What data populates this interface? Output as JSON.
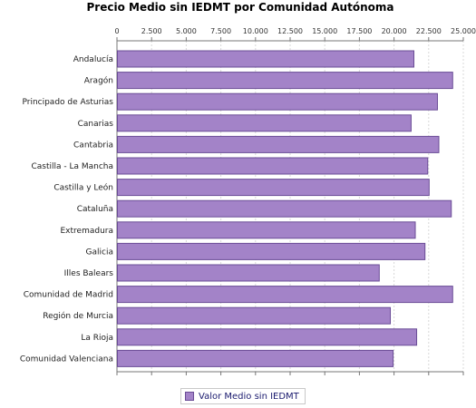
{
  "chart_data": {
    "type": "bar",
    "orientation": "horizontal",
    "title": "Precio Medio sin IEDMT por Comunidad Autónoma",
    "xlim": [
      0,
      25000
    ],
    "x_ticks": [
      "0",
      "2.500",
      "5.000",
      "7.500",
      "10.000",
      "12.500",
      "15.000",
      "17.500",
      "20.000",
      "22.500",
      "25.000"
    ],
    "x_tick_values": [
      0,
      2500,
      5000,
      7500,
      10000,
      12500,
      15000,
      17500,
      20000,
      22500,
      25000
    ],
    "grid": true,
    "legend_position": "bottom-center",
    "categories": [
      "Andalucía",
      "Aragón",
      "Principado de Asturias",
      "Canarias",
      "Cantabria",
      "Castilla - La Mancha",
      "Castilla y León",
      "Cataluña",
      "Extremadura",
      "Galicia",
      "Illes Balears",
      "Comunidad de Madrid",
      "Región de Murcia",
      "La Rioja",
      "Comunidad Valenciana"
    ],
    "series": [
      {
        "name": "Valor Medio sin IEDMT",
        "color": "#a383c8",
        "values": [
          21400,
          24200,
          23100,
          21200,
          23200,
          22400,
          22500,
          24100,
          21500,
          22200,
          18900,
          24200,
          19700,
          21600,
          19900
        ]
      }
    ]
  }
}
